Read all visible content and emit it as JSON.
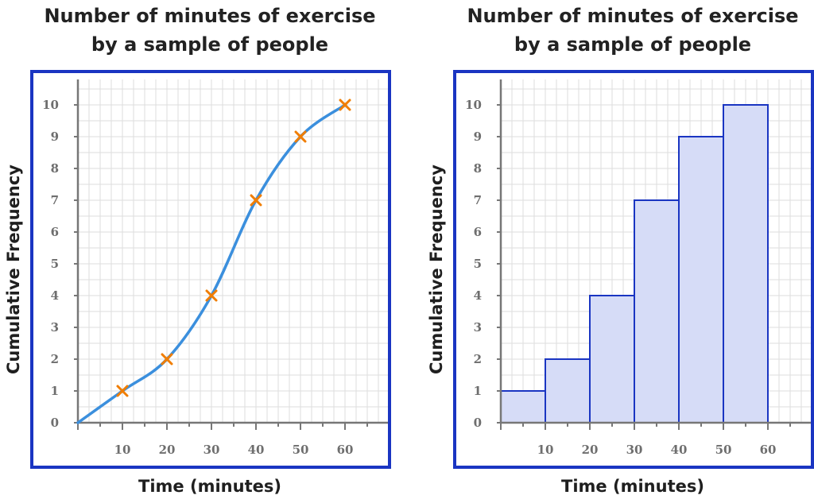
{
  "colors": {
    "frame": "#1a35c2",
    "grid": "#dddddd",
    "axis": "#777777",
    "curve": "#3b8fdd",
    "marker": "#f07d00",
    "bar_fill": "#d6dcf7",
    "bar_stroke": "#1a35c2"
  },
  "chart_data": [
    {
      "type": "line",
      "title_line1": "Number of minutes of exercise",
      "title_line2": "by a sample of people",
      "xlabel": "Time (minutes)",
      "ylabel": "Cumulative Frequency",
      "x_tick_labels": [
        "10",
        "20",
        "30",
        "40",
        "50",
        "60"
      ],
      "y_tick_labels": [
        "0",
        "1",
        "2",
        "3",
        "4",
        "5",
        "6",
        "7",
        "8",
        "9",
        "10"
      ],
      "xlim": [
        0,
        70
      ],
      "ylim": [
        0,
        10.8
      ],
      "grid": true,
      "curve_points": [
        [
          0,
          0
        ],
        [
          10,
          1
        ],
        [
          20,
          2
        ],
        [
          30,
          4
        ],
        [
          40,
          7
        ],
        [
          50,
          9
        ],
        [
          60,
          10
        ]
      ],
      "markers": [
        [
          10,
          1
        ],
        [
          20,
          2
        ],
        [
          30,
          4
        ],
        [
          40,
          7
        ],
        [
          50,
          9
        ],
        [
          60,
          10
        ]
      ],
      "marker_symbol": "x"
    },
    {
      "type": "bar",
      "title_line1": "Number of minutes of exercise",
      "title_line2": "by a sample of people",
      "xlabel": "Time (minutes)",
      "ylabel": "Cumulative Frequency",
      "x_tick_labels": [
        "10",
        "20",
        "30",
        "40",
        "50",
        "60"
      ],
      "y_tick_labels": [
        "0",
        "1",
        "2",
        "3",
        "4",
        "5",
        "6",
        "7",
        "8",
        "9",
        "10"
      ],
      "xlim": [
        0,
        70
      ],
      "ylim": [
        0,
        10.8
      ],
      "grid": true,
      "bins": [
        {
          "from": 0,
          "to": 10,
          "value": 1
        },
        {
          "from": 10,
          "to": 20,
          "value": 2
        },
        {
          "from": 20,
          "to": 30,
          "value": 4
        },
        {
          "from": 30,
          "to": 40,
          "value": 7
        },
        {
          "from": 40,
          "to": 50,
          "value": 9
        },
        {
          "from": 50,
          "to": 60,
          "value": 10
        }
      ]
    }
  ]
}
